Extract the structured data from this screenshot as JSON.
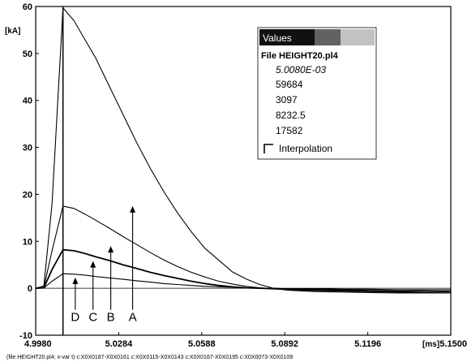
{
  "chart_data": {
    "type": "line",
    "ylabel_unit": "[kA]",
    "xlabel_unit": "[ms]",
    "xlim": [
      4.998,
      5.15
    ],
    "ylim": [
      -10,
      60
    ],
    "x_ticks": [
      "4.9980",
      "5.0284",
      "5.0588",
      "5.0892",
      "5.1196",
      "5.1500"
    ],
    "y_ticks": [
      "-10",
      "0",
      "10",
      "20",
      "30",
      "40",
      "50",
      "60"
    ],
    "cursor_x": 5.008,
    "series": [
      {
        "name": "A",
        "color": "#000000",
        "x": [
          4.998,
          5.001,
          5.004,
          5.008,
          5.012,
          5.016,
          5.02,
          5.025,
          5.03,
          5.035,
          5.04,
          5.045,
          5.05,
          5.055,
          5.06,
          5.065,
          5.07,
          5.075,
          5.08,
          5.085,
          5.09,
          5.1,
          5.11,
          5.12,
          5.13,
          5.14,
          5.15
        ],
        "values": [
          0,
          0.5,
          18,
          59.7,
          57,
          53,
          49,
          43,
          37,
          31,
          25.5,
          20.5,
          16,
          12,
          8.5,
          6,
          3.5,
          2,
          0.8,
          0,
          -0.4,
          -0.7,
          -0.8,
          -0.9,
          -1,
          -1,
          -1
        ]
      },
      {
        "name": "B",
        "color": "#000000",
        "x": [
          4.998,
          5.001,
          5.004,
          5.008,
          5.012,
          5.016,
          5.02,
          5.025,
          5.03,
          5.035,
          5.04,
          5.045,
          5.05,
          5.055,
          5.06,
          5.065,
          5.07,
          5.075,
          5.08,
          5.085,
          5.09,
          5.1,
          5.11,
          5.12,
          5.13,
          5.14,
          5.15
        ],
        "values": [
          0,
          0.2,
          8,
          17.5,
          17,
          15.8,
          14.5,
          12.8,
          11,
          9.3,
          7.6,
          6,
          4.6,
          3.4,
          2.4,
          1.5,
          0.9,
          0.4,
          0.1,
          -0.1,
          -0.3,
          -0.5,
          -0.6,
          -0.7,
          -0.8,
          -0.9,
          -1
        ]
      },
      {
        "name": "C",
        "color": "#000000",
        "x": [
          4.998,
          5.001,
          5.004,
          5.008,
          5.012,
          5.016,
          5.02,
          5.025,
          5.03,
          5.035,
          5.04,
          5.045,
          5.05,
          5.055,
          5.06,
          5.065,
          5.07,
          5.075,
          5.08,
          5.085,
          5.09,
          5.1,
          5.11,
          5.12,
          5.13,
          5.14,
          5.15
        ],
        "values": [
          0,
          0.1,
          4,
          8.2,
          8,
          7.4,
          6.7,
          5.9,
          5,
          4.2,
          3.4,
          2.7,
          2.1,
          1.5,
          1,
          0.6,
          0.3,
          0.1,
          0,
          -0.1,
          -0.2,
          -0.3,
          -0.4,
          -0.5,
          -0.6,
          -0.6,
          -0.7
        ]
      },
      {
        "name": "D",
        "color": "#000000",
        "x": [
          4.998,
          5.001,
          5.004,
          5.008,
          5.012,
          5.016,
          5.02,
          5.025,
          5.03,
          5.035,
          5.04,
          5.045,
          5.05,
          5.055,
          5.06,
          5.065,
          5.07,
          5.075,
          5.08,
          5.085,
          5.09,
          5.1,
          5.11,
          5.12,
          5.13,
          5.14,
          5.15
        ],
        "values": [
          0,
          0.05,
          1.5,
          3.1,
          3,
          2.8,
          2.5,
          2.2,
          1.9,
          1.6,
          1.3,
          1,
          0.8,
          0.6,
          0.4,
          0.3,
          0.2,
          0.1,
          0,
          0,
          -0.1,
          -0.1,
          -0.2,
          -0.2,
          -0.3,
          -0.3,
          -0.3
        ]
      }
    ],
    "annotations": [
      {
        "label": "A",
        "x": 5.0335,
        "y_from": -7,
        "y_to": 17.5
      },
      {
        "label": "B",
        "x": 5.0255,
        "y_from": -7,
        "y_to": 9
      },
      {
        "label": "C",
        "x": 5.019,
        "y_from": -7,
        "y_to": 5.8
      },
      {
        "label": "D",
        "x": 5.0125,
        "y_from": -7,
        "y_to": 2.3
      }
    ],
    "values_panel": {
      "title": "Values",
      "file": "File HEIGHT20.pl4",
      "time": "5.0080E-03",
      "readouts": [
        "59684",
        "3097",
        "8232.5",
        "17582"
      ],
      "interpolation_label": "Interpolation"
    },
    "footer": "(file HEIGHT20.pl4; x-var t)  c:X0X0187-X0X0161     c:X0X0115-X0X0143     c:X0X0167-X0X0195     c:X0X0073-X0X0109"
  }
}
